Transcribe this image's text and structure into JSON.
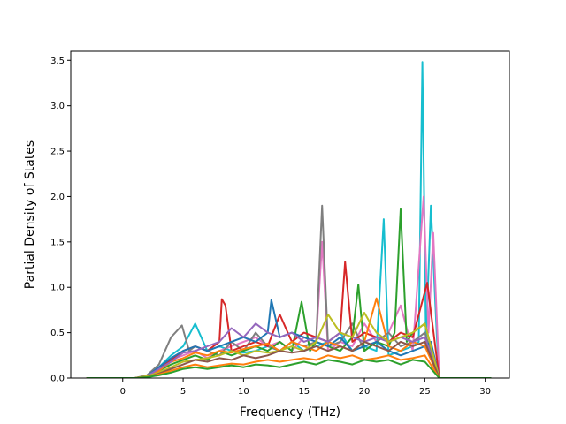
{
  "chart_data": {
    "type": "line",
    "title": "",
    "xlabel": "Frequency (THz)",
    "ylabel": "Partial Density of States",
    "xlim": [
      -4.3,
      32
    ],
    "ylim": [
      0,
      3.6
    ],
    "x_ticks": [
      0,
      5,
      10,
      15,
      20,
      25,
      30
    ],
    "y_ticks": [
      0.0,
      0.5,
      1.0,
      1.5,
      2.0,
      2.5,
      3.0,
      3.5
    ],
    "x_tick_labels": [
      "0",
      "5",
      "10",
      "15",
      "20",
      "25",
      "30"
    ],
    "y_tick_labels": [
      "0.0",
      "0.5",
      "1.0",
      "1.5",
      "2.0",
      "2.5",
      "3.0",
      "3.5"
    ],
    "grid": false,
    "legend": "none",
    "series_count_note_hidden": true,
    "colors": [
      "#1f77b4",
      "#ff7f0e",
      "#2ca02c",
      "#d62728",
      "#9467bd",
      "#8c564b",
      "#e377c2",
      "#7f7f7f",
      "#bcbd22",
      "#17becf"
    ],
    "series": [
      {
        "color": "#17becf",
        "x": [
          -3,
          1,
          2,
          3,
          4,
          5,
          6,
          7,
          8,
          9,
          10,
          11,
          12,
          13,
          14,
          15,
          16,
          17,
          18,
          19,
          20,
          21,
          21.6,
          22,
          23,
          24,
          24.5,
          24.8,
          25.1,
          25.5,
          26,
          26.2,
          30.5
        ],
        "values": [
          0,
          0,
          0.02,
          0.12,
          0.25,
          0.35,
          0.6,
          0.3,
          0.35,
          0.3,
          0.28,
          0.3,
          0.35,
          0.3,
          0.4,
          0.3,
          0.35,
          0.4,
          0.5,
          0.3,
          0.35,
          0.3,
          1.75,
          0.25,
          0.3,
          0.35,
          0.4,
          3.48,
          0.4,
          1.9,
          0.45,
          0,
          0
        ]
      },
      {
        "color": "#e377c2",
        "x": [
          -3,
          1,
          2,
          3,
          4,
          5,
          6,
          7,
          8,
          9,
          10,
          11,
          12,
          13,
          14,
          15,
          16,
          16.5,
          17,
          18,
          19,
          20,
          21,
          22,
          23,
          24,
          24.9,
          25.3,
          25.7,
          26.2,
          30.5
        ],
        "values": [
          0,
          0,
          0.02,
          0.1,
          0.2,
          0.25,
          0.3,
          0.22,
          0.3,
          0.35,
          0.4,
          0.45,
          0.35,
          0.4,
          0.3,
          0.45,
          0.4,
          1.5,
          0.3,
          0.4,
          0.35,
          0.6,
          0.4,
          0.5,
          0.8,
          0.3,
          2.0,
          0.5,
          1.6,
          0,
          0
        ]
      },
      {
        "color": "#7f7f7f",
        "x": [
          -3,
          1,
          2,
          3,
          4,
          4.9,
          5.5,
          6,
          7,
          8,
          9,
          10,
          11,
          12,
          13,
          14,
          15,
          16,
          16.5,
          17,
          18,
          19,
          20,
          21,
          22,
          23,
          24,
          25,
          26.2,
          30.5
        ],
        "values": [
          0,
          0,
          0.03,
          0.15,
          0.45,
          0.58,
          0.3,
          0.35,
          0.3,
          0.25,
          0.4,
          0.3,
          0.5,
          0.35,
          0.3,
          0.4,
          0.35,
          0.4,
          1.9,
          0.35,
          0.4,
          0.6,
          0.3,
          0.4,
          0.5,
          0.35,
          0.4,
          0.5,
          0,
          0
        ]
      },
      {
        "color": "#2ca02c",
        "x": [
          -3,
          1,
          2,
          3,
          4,
          5,
          6,
          7,
          8,
          9,
          10,
          11,
          12,
          13,
          14,
          14.8,
          15.5,
          16,
          17,
          18,
          19,
          19.5,
          20,
          21,
          22,
          22.5,
          23,
          23.5,
          24,
          25,
          26.2,
          30.5
        ],
        "values": [
          0,
          0,
          0.02,
          0.08,
          0.15,
          0.2,
          0.25,
          0.2,
          0.3,
          0.25,
          0.3,
          0.35,
          0.3,
          0.4,
          0.3,
          0.84,
          0.3,
          0.4,
          0.35,
          0.3,
          0.45,
          1.03,
          0.3,
          0.4,
          0.35,
          0.5,
          1.86,
          0.4,
          0.5,
          0.6,
          0,
          0
        ]
      },
      {
        "color": "#d62728",
        "x": [
          -3,
          1,
          2,
          3,
          4,
          5,
          6,
          7,
          8,
          8.2,
          8.5,
          9,
          10,
          11,
          12,
          13,
          14,
          15,
          16,
          17,
          18,
          18.4,
          19,
          20,
          21,
          22,
          23,
          24,
          25.2,
          26.2,
          30.5
        ],
        "values": [
          0,
          0,
          0.02,
          0.1,
          0.2,
          0.3,
          0.35,
          0.3,
          0.4,
          0.87,
          0.8,
          0.3,
          0.35,
          0.4,
          0.35,
          0.7,
          0.4,
          0.5,
          0.45,
          0.4,
          0.5,
          1.28,
          0.4,
          0.5,
          0.45,
          0.4,
          0.5,
          0.45,
          1.05,
          0,
          0
        ]
      },
      {
        "color": "#1f77b4",
        "x": [
          -3,
          1,
          2,
          3,
          4,
          5,
          6,
          7,
          8,
          9,
          10,
          11,
          12,
          12.3,
          13,
          14,
          15,
          16,
          17,
          18,
          19,
          20,
          21,
          22,
          23,
          24,
          25,
          25.5,
          26.2,
          30.5
        ],
        "values": [
          0,
          0,
          0.02,
          0.12,
          0.22,
          0.3,
          0.35,
          0.3,
          0.35,
          0.4,
          0.45,
          0.4,
          0.5,
          0.86,
          0.45,
          0.5,
          0.45,
          0.4,
          0.35,
          0.45,
          0.3,
          0.35,
          0.4,
          0.3,
          0.25,
          0.3,
          0.35,
          0.4,
          0,
          0
        ]
      },
      {
        "color": "#ff7f0e",
        "x": [
          -3,
          1,
          2,
          3,
          4,
          5,
          6,
          7,
          8,
          9,
          10,
          11,
          12,
          13,
          14,
          15,
          16,
          17,
          18,
          19,
          20,
          21,
          22,
          23,
          24,
          25,
          26.2,
          30.5
        ],
        "values": [
          0,
          0,
          0.02,
          0.08,
          0.18,
          0.22,
          0.28,
          0.25,
          0.3,
          0.28,
          0.32,
          0.35,
          0.38,
          0.3,
          0.4,
          0.35,
          0.3,
          0.4,
          0.35,
          0.3,
          0.4,
          0.88,
          0.35,
          0.3,
          0.4,
          0.35,
          0,
          0
        ]
      },
      {
        "color": "#9467bd",
        "x": [
          -3,
          1,
          2,
          3,
          4,
          5,
          6,
          7,
          8,
          9,
          10,
          11,
          12,
          13,
          14,
          15,
          16,
          17,
          18,
          19,
          20,
          21,
          22,
          23,
          24,
          25,
          26.2,
          30.5
        ],
        "values": [
          0,
          0,
          0.02,
          0.1,
          0.18,
          0.28,
          0.3,
          0.35,
          0.4,
          0.55,
          0.45,
          0.6,
          0.5,
          0.45,
          0.5,
          0.4,
          0.45,
          0.4,
          0.5,
          0.45,
          0.4,
          0.45,
          0.4,
          0.45,
          0.4,
          0.45,
          0,
          0
        ]
      },
      {
        "color": "#bcbd22",
        "x": [
          -3,
          1,
          2,
          3,
          4,
          5,
          6,
          7,
          8,
          9,
          10,
          11,
          12,
          13,
          14,
          15,
          16,
          17,
          18,
          19,
          20,
          20.5,
          21,
          22,
          23,
          24,
          25,
          26.2,
          30.5
        ],
        "values": [
          0,
          0,
          0.02,
          0.06,
          0.12,
          0.18,
          0.2,
          0.22,
          0.25,
          0.3,
          0.25,
          0.3,
          0.28,
          0.3,
          0.35,
          0.3,
          0.4,
          0.7,
          0.5,
          0.45,
          0.72,
          0.6,
          0.5,
          0.4,
          0.45,
          0.5,
          0.6,
          0,
          0
        ]
      },
      {
        "color": "#8c564b",
        "x": [
          -3,
          1,
          2,
          3,
          4,
          5,
          6,
          7,
          8,
          9,
          10,
          11,
          12,
          13,
          14,
          15,
          16,
          17,
          18,
          19,
          20,
          21,
          22,
          23,
          24,
          25,
          26.2,
          30.5
        ],
        "values": [
          0,
          0,
          0.01,
          0.05,
          0.1,
          0.15,
          0.2,
          0.18,
          0.22,
          0.2,
          0.25,
          0.22,
          0.25,
          0.3,
          0.28,
          0.3,
          0.35,
          0.3,
          0.35,
          0.3,
          0.4,
          0.35,
          0.3,
          0.4,
          0.35,
          0.4,
          0,
          0
        ]
      },
      {
        "color": "#ff7f0e",
        "x": [
          -3,
          1,
          2,
          3,
          4,
          5,
          6,
          7,
          8,
          9,
          10,
          11,
          12,
          13,
          14,
          15,
          16,
          17,
          18,
          19,
          20,
          21,
          22,
          23,
          24,
          25,
          26.2,
          30.5
        ],
        "values": [
          0,
          0,
          0.01,
          0.04,
          0.08,
          0.12,
          0.15,
          0.12,
          0.14,
          0.16,
          0.15,
          0.18,
          0.2,
          0.18,
          0.2,
          0.22,
          0.2,
          0.25,
          0.22,
          0.25,
          0.2,
          0.22,
          0.25,
          0.2,
          0.22,
          0.25,
          0,
          0
        ]
      },
      {
        "color": "#2ca02c",
        "x": [
          -3,
          1,
          2,
          3,
          4,
          5,
          6,
          7,
          8,
          9,
          10,
          11,
          12,
          13,
          14,
          15,
          16,
          17,
          18,
          19,
          20,
          21,
          22,
          23,
          24,
          25,
          26.2,
          30.5
        ],
        "values": [
          0,
          0,
          0.01,
          0.03,
          0.06,
          0.1,
          0.12,
          0.1,
          0.12,
          0.14,
          0.12,
          0.15,
          0.14,
          0.12,
          0.15,
          0.18,
          0.15,
          0.2,
          0.18,
          0.15,
          0.2,
          0.18,
          0.2,
          0.15,
          0.2,
          0.18,
          0,
          0
        ]
      }
    ]
  }
}
